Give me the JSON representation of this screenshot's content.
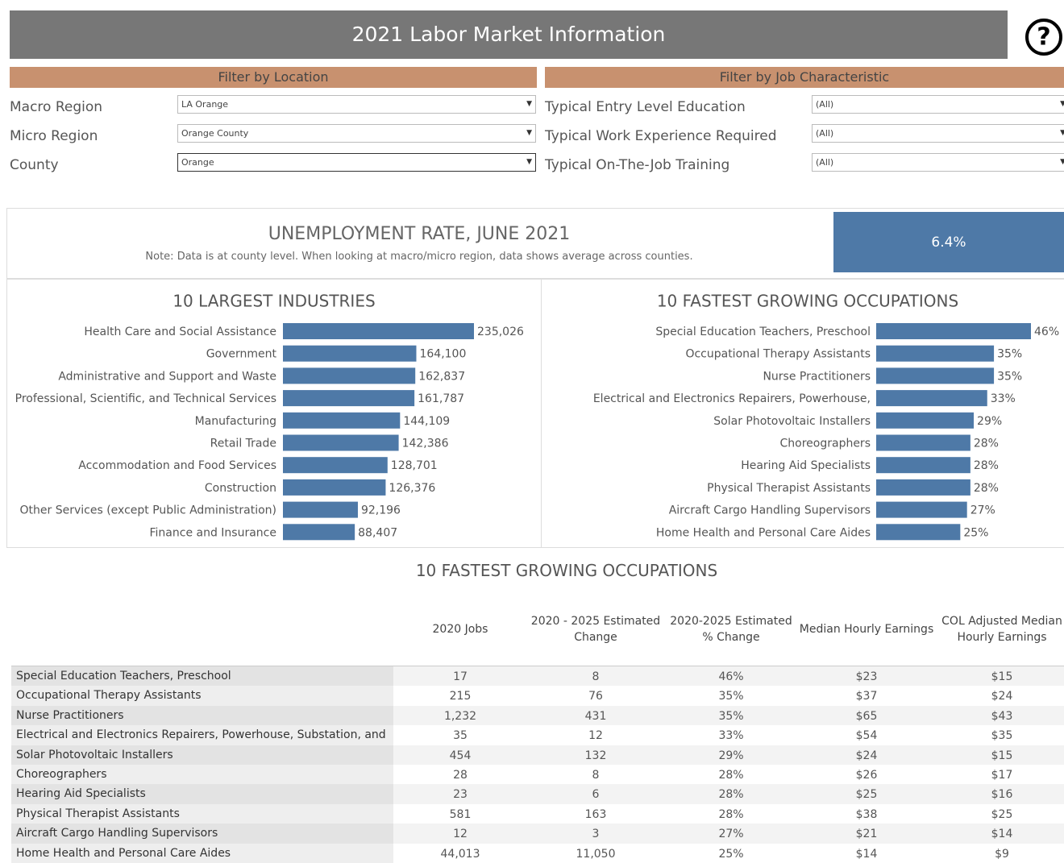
{
  "header": {
    "title": "2021 Labor Market Information"
  },
  "filters": {
    "location": {
      "title": "Filter by Location",
      "fields": [
        {
          "label": "Macro Region",
          "value": "LA Orange"
        },
        {
          "label": "Micro Region",
          "value": "Orange County"
        },
        {
          "label": "County",
          "value": "Orange"
        }
      ]
    },
    "job": {
      "title": "Filter by Job Characteristic",
      "fields": [
        {
          "label": "Typical Entry Level Education",
          "value": "(All)"
        },
        {
          "label": "Typical Work Experience Required",
          "value": "(All)"
        },
        {
          "label": "Typical On-The-Job Training",
          "value": "(All)"
        }
      ]
    }
  },
  "unemployment": {
    "title": "UNEMPLOYMENT RATE, JUNE 2021",
    "note": "Note: Data is at county level.  When looking at macro/micro region, data shows average across counties.",
    "value": "6.4%"
  },
  "chart_data": [
    {
      "type": "bar",
      "orientation": "horizontal",
      "title": "10 LARGEST INDUSTRIES",
      "color": "#4e79a7",
      "categories": [
        "Health Care and Social Assistance",
        "Government",
        "Administrative and Support and Waste",
        "Professional, Scientific, and Technical Services",
        "Manufacturing",
        "Retail Trade",
        "Accommodation and Food Services",
        "Construction",
        "Other Services (except Public Administration)",
        "Finance and Insurance"
      ],
      "values": [
        235026,
        164100,
        162837,
        161787,
        144109,
        142386,
        128701,
        126376,
        92196,
        88407
      ],
      "value_labels": [
        "235,026",
        "164,100",
        "162,837",
        "161,787",
        "144,109",
        "142,386",
        "128,701",
        "126,376",
        "92,196",
        "88,407"
      ]
    },
    {
      "type": "bar",
      "orientation": "horizontal",
      "title": "10 FASTEST GROWING OCCUPATIONS",
      "color": "#4e79a7",
      "categories": [
        "Special Education Teachers, Preschool",
        "Occupational Therapy Assistants",
        "Nurse Practitioners",
        "Electrical and Electronics Repairers, Powerhouse,",
        "Solar Photovoltaic Installers",
        "Choreographers",
        "Hearing Aid Specialists",
        "Physical Therapist Assistants",
        "Aircraft Cargo Handling Supervisors",
        "Home Health and Personal Care Aides"
      ],
      "values": [
        46,
        35,
        35,
        33,
        29,
        28,
        28,
        28,
        27,
        25
      ],
      "value_labels": [
        "46%",
        "35%",
        "35%",
        "33%",
        "29%",
        "28%",
        "28%",
        "28%",
        "27%",
        "25%"
      ]
    }
  ],
  "table": {
    "title": "10 FASTEST GROWING OCCUPATIONS",
    "columns": [
      "2020 Jobs",
      "2020 - 2025 Estimated Change",
      "2020-2025 Estimated % Change",
      "Median Hourly Earnings",
      "COL Adjusted Median Hourly Earnings"
    ],
    "rows": [
      [
        "Special Education Teachers, Preschool",
        "17",
        "8",
        "46%",
        "$23",
        "$15"
      ],
      [
        "Occupational Therapy Assistants",
        "215",
        "76",
        "35%",
        "$37",
        "$24"
      ],
      [
        "Nurse Practitioners",
        "1,232",
        "431",
        "35%",
        "$65",
        "$43"
      ],
      [
        "Electrical and Electronics Repairers, Powerhouse, Substation, and",
        "35",
        "12",
        "33%",
        "$54",
        "$35"
      ],
      [
        "Solar Photovoltaic Installers",
        "454",
        "132",
        "29%",
        "$24",
        "$15"
      ],
      [
        "Choreographers",
        "28",
        "8",
        "28%",
        "$26",
        "$17"
      ],
      [
        "Hearing Aid Specialists",
        "23",
        "6",
        "28%",
        "$25",
        "$16"
      ],
      [
        "Physical Therapist Assistants",
        "581",
        "163",
        "28%",
        "$38",
        "$25"
      ],
      [
        "Aircraft Cargo Handling Supervisors",
        "12",
        "3",
        "27%",
        "$21",
        "$14"
      ],
      [
        "Home Health and Personal Care Aides",
        "44,013",
        "11,050",
        "25%",
        "$14",
        "$9"
      ]
    ]
  }
}
